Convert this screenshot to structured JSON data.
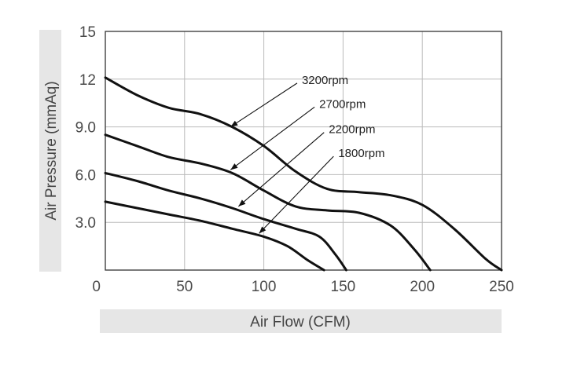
{
  "chart_data": {
    "type": "line",
    "title": "",
    "xlabel": "Air Flow (CFM)",
    "ylabel": "Air Pressure (mmAq)",
    "xlim": [
      0,
      250
    ],
    "ylim": [
      0,
      15
    ],
    "x_ticks": [
      0,
      50,
      100,
      150,
      200,
      250
    ],
    "x_tick_labels": [
      "0",
      "50",
      "100",
      "150",
      "200",
      "250"
    ],
    "y_ticks": [
      3,
      6,
      9,
      12,
      15
    ],
    "y_tick_labels": [
      "3.0",
      "6.0",
      "9.0",
      "12",
      "15"
    ],
    "grid": true,
    "legend": "none",
    "colors": {
      "line": "#111111",
      "grid": "#bbbbbb",
      "label_band": "#e6e6e6",
      "frame": "#333333"
    },
    "series": [
      {
        "name": "3200rpm",
        "points": [
          [
            0,
            12.1
          ],
          [
            20,
            11.0
          ],
          [
            40,
            10.2
          ],
          [
            60,
            9.8
          ],
          [
            80,
            9.0
          ],
          [
            100,
            7.8
          ],
          [
            120,
            6.2
          ],
          [
            140,
            5.1
          ],
          [
            160,
            4.9
          ],
          [
            180,
            4.7
          ],
          [
            200,
            4.1
          ],
          [
            220,
            2.6
          ],
          [
            240,
            0.7
          ],
          [
            250,
            0
          ]
        ]
      },
      {
        "name": "2700rpm",
        "points": [
          [
            0,
            8.5
          ],
          [
            20,
            7.8
          ],
          [
            40,
            7.1
          ],
          [
            60,
            6.7
          ],
          [
            80,
            6.1
          ],
          [
            100,
            5.0
          ],
          [
            120,
            4.0
          ],
          [
            140,
            3.75
          ],
          [
            160,
            3.6
          ],
          [
            180,
            2.8
          ],
          [
            195,
            1.3
          ],
          [
            205,
            0
          ]
        ]
      },
      {
        "name": "2200rpm",
        "points": [
          [
            0,
            6.1
          ],
          [
            20,
            5.6
          ],
          [
            40,
            5.0
          ],
          [
            60,
            4.5
          ],
          [
            80,
            3.9
          ],
          [
            100,
            3.2
          ],
          [
            120,
            2.6
          ],
          [
            135,
            2.1
          ],
          [
            145,
            1.0
          ],
          [
            152,
            0
          ]
        ]
      },
      {
        "name": "1800rpm",
        "points": [
          [
            0,
            4.3
          ],
          [
            20,
            3.9
          ],
          [
            40,
            3.5
          ],
          [
            60,
            3.1
          ],
          [
            80,
            2.6
          ],
          [
            100,
            2.1
          ],
          [
            115,
            1.5
          ],
          [
            128,
            0.6
          ],
          [
            138,
            0
          ]
        ]
      }
    ],
    "annotations": [
      {
        "text": "3200rpm",
        "series": "3200rpm",
        "label_at": [
          124,
          11.7
        ],
        "arrow_tip": [
          79,
          9.0
        ]
      },
      {
        "text": "2700rpm",
        "series": "2700rpm",
        "label_at": [
          135,
          10.2
        ],
        "arrow_tip": [
          79,
          6.3
        ]
      },
      {
        "text": "2200rpm",
        "series": "2200rpm",
        "label_at": [
          141,
          8.6
        ],
        "arrow_tip": [
          84,
          4.0
        ]
      },
      {
        "text": "1800rpm",
        "series": "1800rpm",
        "label_at": [
          147,
          7.1
        ],
        "arrow_tip": [
          97,
          2.3
        ]
      }
    ]
  }
}
